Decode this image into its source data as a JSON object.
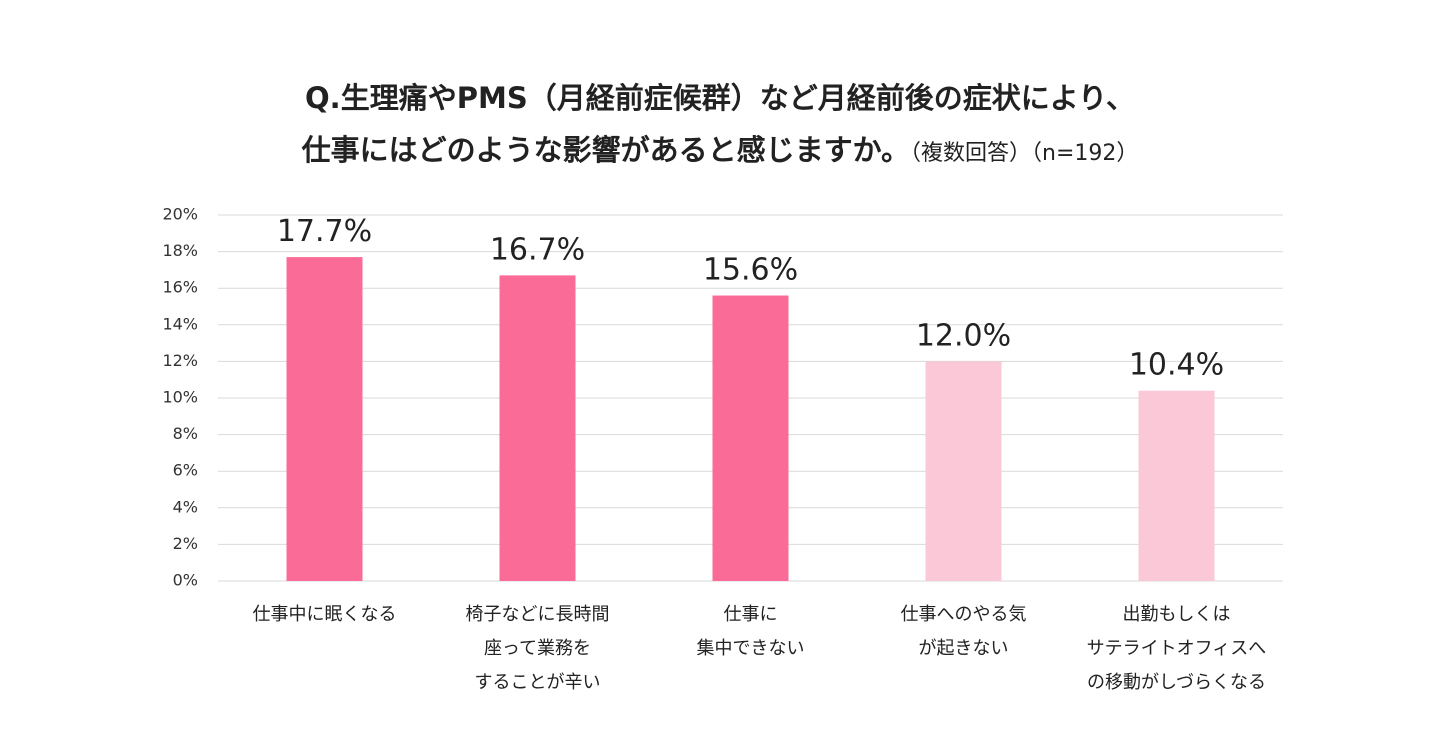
{
  "chart_data": {
    "type": "bar",
    "title_line1": "Q.生理痛やPMS（月経前症候群）など月経前後の症状により、",
    "title_line2": "仕事にはどのような影響があると感じますか。",
    "title_note": "（複数回答）（n=192）",
    "categories": [
      [
        "仕事中に眠くなる"
      ],
      [
        "椅子などに長時間",
        "座って業務を",
        "することが辛い"
      ],
      [
        "仕事に",
        "集中できない"
      ],
      [
        "仕事へのやる気",
        "が起きない"
      ],
      [
        "出勤もしくは",
        "サテライトオフィスへ",
        "の移動がしづらくなる"
      ]
    ],
    "values": [
      17.7,
      16.7,
      15.6,
      12.0,
      10.4
    ],
    "data_labels": [
      "17.7%",
      "16.7%",
      "15.6%",
      "12.0%",
      "10.4%"
    ],
    "bar_colors": [
      "#fb6b98",
      "#fb6b98",
      "#fb6b98",
      "#fac8d7",
      "#fac8d7"
    ],
    "ylim": [
      0,
      20
    ],
    "yticks": [
      0,
      2,
      4,
      6,
      8,
      10,
      12,
      14,
      16,
      18,
      20
    ],
    "ytick_labels": [
      "0%",
      "2%",
      "4%",
      "6%",
      "8%",
      "10%",
      "12%",
      "14%",
      "16%",
      "18%",
      "20%"
    ],
    "grid": true,
    "grid_color": "#d9d9d9",
    "xlabel": "",
    "ylabel": ""
  }
}
